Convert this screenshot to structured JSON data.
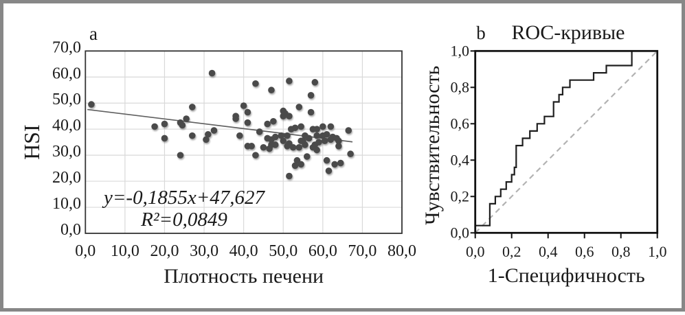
{
  "figure": {
    "frame_color": "#878787",
    "background": "#ffffff"
  },
  "panel_a": {
    "label": "a"
  },
  "panel_b": {
    "label": "b",
    "title": "ROC-кривые"
  },
  "chart_data": [
    {
      "type": "scatter",
      "panel": "a",
      "title": "",
      "xlabel": "Плотность печени",
      "ylabel": "HSI",
      "xlim": [
        0,
        80
      ],
      "ylim": [
        0,
        70
      ],
      "grid": true,
      "x_tick_values": [
        0,
        10,
        20,
        30,
        40,
        50,
        60,
        70,
        80
      ],
      "x_tick_labels": [
        "0,0",
        "10,0",
        "20,0",
        "30,0",
        "40,0",
        "50,0",
        "60,0",
        "70,0",
        "80,0"
      ],
      "y_tick_values": [
        0,
        10,
        20,
        30,
        40,
        50,
        60,
        70
      ],
      "y_tick_labels": [
        "0,0",
        "10,0",
        "20,0",
        "30,0",
        "40,0",
        "50,0",
        "60,0",
        "70,0"
      ],
      "equation": "y=-0,1855x+47,627",
      "r_squared": "R²=0,0849",
      "trendline": {
        "slope": -0.1855,
        "intercept": 47.627,
        "x_range": [
          0.5,
          67.5
        ],
        "color": "#606060"
      },
      "point_color": "#4a4a4a",
      "points": [
        [
          1.5,
          49.5
        ],
        [
          27,
          48.5
        ],
        [
          17.5,
          41
        ],
        [
          20,
          42
        ],
        [
          24,
          42.5
        ],
        [
          25.5,
          44
        ],
        [
          24.5,
          41.5
        ],
        [
          20,
          36.5
        ],
        [
          27,
          37.5
        ],
        [
          32,
          61.5
        ],
        [
          43,
          57.5
        ],
        [
          47,
          55
        ],
        [
          51.5,
          58.5
        ],
        [
          40,
          49
        ],
        [
          41,
          46.5
        ],
        [
          38,
          45
        ],
        [
          38,
          44
        ],
        [
          41,
          42.5
        ],
        [
          47.5,
          43
        ],
        [
          46,
          42
        ],
        [
          50,
          47
        ],
        [
          50.5,
          46
        ],
        [
          50,
          45
        ],
        [
          51.5,
          45
        ],
        [
          54,
          48.5
        ],
        [
          32.5,
          39.5
        ],
        [
          31,
          38
        ],
        [
          39,
          37.5
        ],
        [
          44,
          39
        ],
        [
          46,
          36.5
        ],
        [
          47,
          36
        ],
        [
          48,
          37
        ],
        [
          49.5,
          37.5
        ],
        [
          51,
          37.5
        ],
        [
          58,
          58
        ],
        [
          57,
          53
        ],
        [
          57,
          46.5
        ],
        [
          54.5,
          41
        ],
        [
          57.5,
          40
        ],
        [
          58.5,
          40
        ],
        [
          60,
          41
        ],
        [
          62,
          41
        ],
        [
          66.5,
          39.5
        ],
        [
          55.5,
          37.5
        ],
        [
          56.5,
          36.5
        ],
        [
          58.5,
          37.5
        ],
        [
          60,
          37.5
        ],
        [
          61,
          38
        ],
        [
          62.5,
          37
        ],
        [
          63.5,
          36.5
        ],
        [
          52,
          40
        ],
        [
          53,
          40.5
        ],
        [
          24,
          30
        ],
        [
          30.5,
          36
        ],
        [
          41,
          33.5
        ],
        [
          42,
          33.5
        ],
        [
          43,
          30
        ],
        [
          45,
          33
        ],
        [
          46.5,
          32.5
        ],
        [
          47,
          34
        ],
        [
          48,
          34
        ],
        [
          50,
          35.5
        ],
        [
          51,
          33.5
        ],
        [
          51.5,
          34.5
        ],
        [
          52.5,
          33
        ],
        [
          53.5,
          28
        ],
        [
          51.5,
          22
        ],
        [
          54,
          33
        ],
        [
          55.5,
          34
        ],
        [
          55,
          35.5
        ],
        [
          54.5,
          35.5
        ],
        [
          57.5,
          33
        ],
        [
          58,
          34
        ],
        [
          59,
          35
        ],
        [
          58.5,
          32
        ],
        [
          60.5,
          35.5
        ],
        [
          62,
          36
        ],
        [
          64,
          33.5
        ],
        [
          64,
          35.5
        ],
        [
          67,
          30.5
        ],
        [
          61,
          28
        ],
        [
          63,
          26.5
        ],
        [
          64.5,
          27
        ],
        [
          61.5,
          24
        ],
        [
          56,
          29.5
        ],
        [
          53,
          26
        ],
        [
          54.5,
          26.5
        ]
      ]
    },
    {
      "type": "line",
      "panel": "b",
      "title": "ROC-кривые",
      "xlabel": "1-Специфичность",
      "ylabel": "Чувствительность",
      "xlim": [
        0,
        1
      ],
      "ylim": [
        0,
        1
      ],
      "grid": false,
      "tick_values": [
        0,
        0.2,
        0.4,
        0.6,
        0.8,
        1.0
      ],
      "x_tick_labels": [
        "0,0",
        "0,2",
        "0,4",
        "0,6",
        "0,8",
        "1,0"
      ],
      "y_tick_labels": [
        "0,0",
        "0,2",
        "0,4",
        "0,6",
        "0,8",
        "1,0"
      ],
      "curve_color": "#1f1f1f",
      "reference_color": "#b3b3b3",
      "roc_points": [
        [
          0,
          0
        ],
        [
          0,
          0.04
        ],
        [
          0.08,
          0.04
        ],
        [
          0.08,
          0.16
        ],
        [
          0.11,
          0.16
        ],
        [
          0.11,
          0.2
        ],
        [
          0.14,
          0.2
        ],
        [
          0.14,
          0.24
        ],
        [
          0.17,
          0.24
        ],
        [
          0.17,
          0.28
        ],
        [
          0.2,
          0.28
        ],
        [
          0.2,
          0.32
        ],
        [
          0.215,
          0.32
        ],
        [
          0.215,
          0.36
        ],
        [
          0.225,
          0.36
        ],
        [
          0.225,
          0.48
        ],
        [
          0.26,
          0.48
        ],
        [
          0.26,
          0.52
        ],
        [
          0.3,
          0.52
        ],
        [
          0.3,
          0.56
        ],
        [
          0.34,
          0.56
        ],
        [
          0.34,
          0.6
        ],
        [
          0.38,
          0.6
        ],
        [
          0.38,
          0.64
        ],
        [
          0.43,
          0.64
        ],
        [
          0.43,
          0.72
        ],
        [
          0.46,
          0.72
        ],
        [
          0.46,
          0.76
        ],
        [
          0.48,
          0.76
        ],
        [
          0.48,
          0.8
        ],
        [
          0.52,
          0.8
        ],
        [
          0.52,
          0.84
        ],
        [
          0.65,
          0.84
        ],
        [
          0.65,
          0.88
        ],
        [
          0.72,
          0.88
        ],
        [
          0.72,
          0.92
        ],
        [
          0.86,
          0.92
        ],
        [
          0.86,
          1.0
        ],
        [
          1.0,
          1.0
        ]
      ],
      "reference": [
        [
          0,
          0
        ],
        [
          1,
          1
        ]
      ]
    }
  ]
}
